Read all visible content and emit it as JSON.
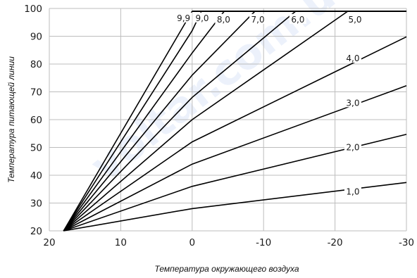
{
  "chart_data": {
    "type": "line",
    "xlabel": "Температура окружающего воздуха",
    "ylabel": "Температура питающей линии",
    "xlim": [
      20,
      -30
    ],
    "ylim": [
      20,
      100
    ],
    "xticks": [
      20,
      10,
      0,
      -10,
      -20,
      -30
    ],
    "xtick_labels": [
      "20",
      "10",
      "0",
      "-10",
      "-20",
      "-30"
    ],
    "yticks": [
      20,
      30,
      40,
      50,
      60,
      70,
      80,
      90,
      100
    ],
    "ytick_labels": [
      "20",
      "30",
      "40",
      "50",
      "60",
      "70",
      "80",
      "90",
      "100"
    ],
    "grid": true,
    "max_flow_temp": 99,
    "series": [
      {
        "name": "1,0",
        "x": [
          18,
          0,
          -30
        ],
        "y": [
          20,
          28,
          37.4
        ]
      },
      {
        "name": "2,0",
        "x": [
          18,
          0,
          -30
        ],
        "y": [
          20,
          36,
          54.7
        ]
      },
      {
        "name": "3,0",
        "x": [
          18,
          0,
          -30
        ],
        "y": [
          20,
          44,
          72.2
        ]
      },
      {
        "name": "4,0",
        "x": [
          18,
          0,
          -30
        ],
        "y": [
          20,
          52,
          89.8
        ]
      },
      {
        "name": "5,0",
        "x": [
          18,
          0,
          -21.8
        ],
        "y": [
          20,
          60,
          99
        ]
      },
      {
        "name": "6,0",
        "x": [
          18,
          0,
          -14.5
        ],
        "y": [
          20,
          68,
          99
        ]
      },
      {
        "name": "7,0",
        "x": [
          18,
          0,
          -8.8
        ],
        "y": [
          20,
          76,
          99
        ]
      },
      {
        "name": "8,0",
        "x": [
          18,
          0,
          -4.5
        ],
        "y": [
          20,
          84,
          99
        ]
      },
      {
        "name": "9,0",
        "x": [
          18,
          0,
          -1.3
        ],
        "y": [
          20,
          92,
          99
        ]
      },
      {
        "name": "9,9",
        "x": [
          18,
          0
        ],
        "y": [
          20,
          99
        ]
      }
    ],
    "label_positions_data": [
      {
        "label": "1,0",
        "x": -22.5,
        "y": 34
      },
      {
        "label": "2,0",
        "x": -22.5,
        "y": 50
      },
      {
        "label": "3,0",
        "x": -22.5,
        "y": 66
      },
      {
        "label": "4,0",
        "x": -22.5,
        "y": 82
      },
      {
        "label": "5,0",
        "x": -22.8,
        "y": 96
      },
      {
        "label": "6,0",
        "x": -14.8,
        "y": 96
      },
      {
        "label": "7,0",
        "x": -9.2,
        "y": 96
      },
      {
        "label": "8,0",
        "x": -4.4,
        "y": 96
      },
      {
        "label": "9,0",
        "x": -1.4,
        "y": 96.5
      },
      {
        "label": "9,9",
        "x": 1.2,
        "y": 96.5
      }
    ]
  },
  "watermark": {
    "text": "voltar.com.ua",
    "color": "#3b6fd6"
  }
}
